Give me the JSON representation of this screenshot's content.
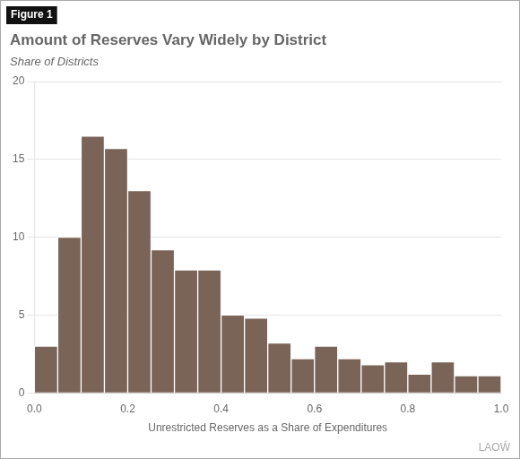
{
  "chart_data": {
    "type": "histogram",
    "title": "Amount of Reserves Vary Widely by District",
    "subtitle": "Share of Districts",
    "xlabel": "Unrestricted Reserves as a Share of Expenditures",
    "annotations": [
      "Figure 1",
      "LAOẂ"
    ],
    "bins": [
      0.0,
      0.05,
      0.1,
      0.15,
      0.2,
      0.25,
      0.3,
      0.35,
      0.4,
      0.45,
      0.5,
      0.55,
      0.6,
      0.65,
      0.7,
      0.75,
      0.8,
      0.85,
      0.9,
      0.95,
      1.0
    ],
    "values": [
      3,
      10,
      16.5,
      15.7,
      13,
      9.2,
      7.9,
      7.9,
      5.0,
      4.8,
      3.2,
      2.2,
      3.0,
      2.2,
      1.8,
      2.0,
      1.2,
      2.0,
      1.1,
      1.1
    ],
    "color": "#7a6357",
    "xlim": [
      0.0,
      1.0
    ],
    "ylim": [
      0,
      20
    ],
    "xticks": [
      {
        "value": 0,
        "label": "0.0"
      },
      0.2,
      0.4,
      0.6,
      0.8,
      {
        "value": 1,
        "label": "1.0"
      }
    ],
    "yticks": [
      0,
      5,
      10,
      15,
      20
    ],
    "grid": "y"
  }
}
